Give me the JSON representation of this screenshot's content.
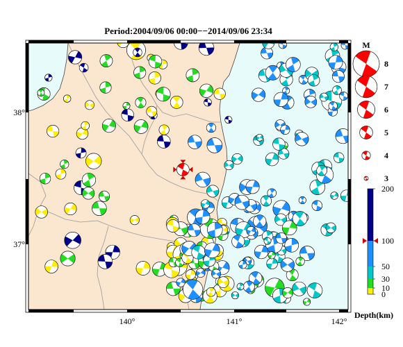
{
  "title": "Period:2004/09/06 00:00−−2014/09/06 23:34",
  "map": {
    "lon_range": [
      139.1,
      142.1
    ],
    "lat_range": [
      36.5,
      38.5
    ],
    "x_ticks": [
      {
        "value": 140,
        "label": "140°"
      },
      {
        "value": 141,
        "label": "141°"
      },
      {
        "value": 142,
        "label": "142°"
      }
    ],
    "y_ticks": [
      {
        "value": 38,
        "label": "38°"
      },
      {
        "value": 37,
        "label": "37°"
      }
    ],
    "colors": {
      "land": "#fbe6cf",
      "sea": "#e8fbfb",
      "border": "#9a9a9a",
      "coast": "#444444"
    }
  },
  "magnitude_legend": {
    "title": "M",
    "items": [
      {
        "label": "8",
        "mag": 8
      },
      {
        "label": "7",
        "mag": 7
      },
      {
        "label": "6",
        "mag": 6
      },
      {
        "label": "5",
        "mag": 5
      },
      {
        "label": "4",
        "mag": 4
      },
      {
        "label": "3",
        "mag": 3
      }
    ],
    "color": "#ff0000"
  },
  "depth_scale": {
    "title": "Depth(km)",
    "labels": [
      "200",
      "100",
      "50",
      "30",
      "10",
      "0"
    ],
    "marker_value": 100,
    "bands": [
      {
        "from": 0,
        "to": 10,
        "color": "#ffee00"
      },
      {
        "from": 10,
        "to": 30,
        "color": "#22dd22"
      },
      {
        "from": 30,
        "to": 50,
        "color": "#00c8c8"
      },
      {
        "from": 50,
        "to": 100,
        "color": "#1e90ff"
      },
      {
        "from": 100,
        "to": 200,
        "color": "#00008b"
      }
    ]
  },
  "target_event": {
    "lon": 140.55,
    "lat": 37.55,
    "mag": 5.2,
    "marker_color": "#d00000"
  }
}
